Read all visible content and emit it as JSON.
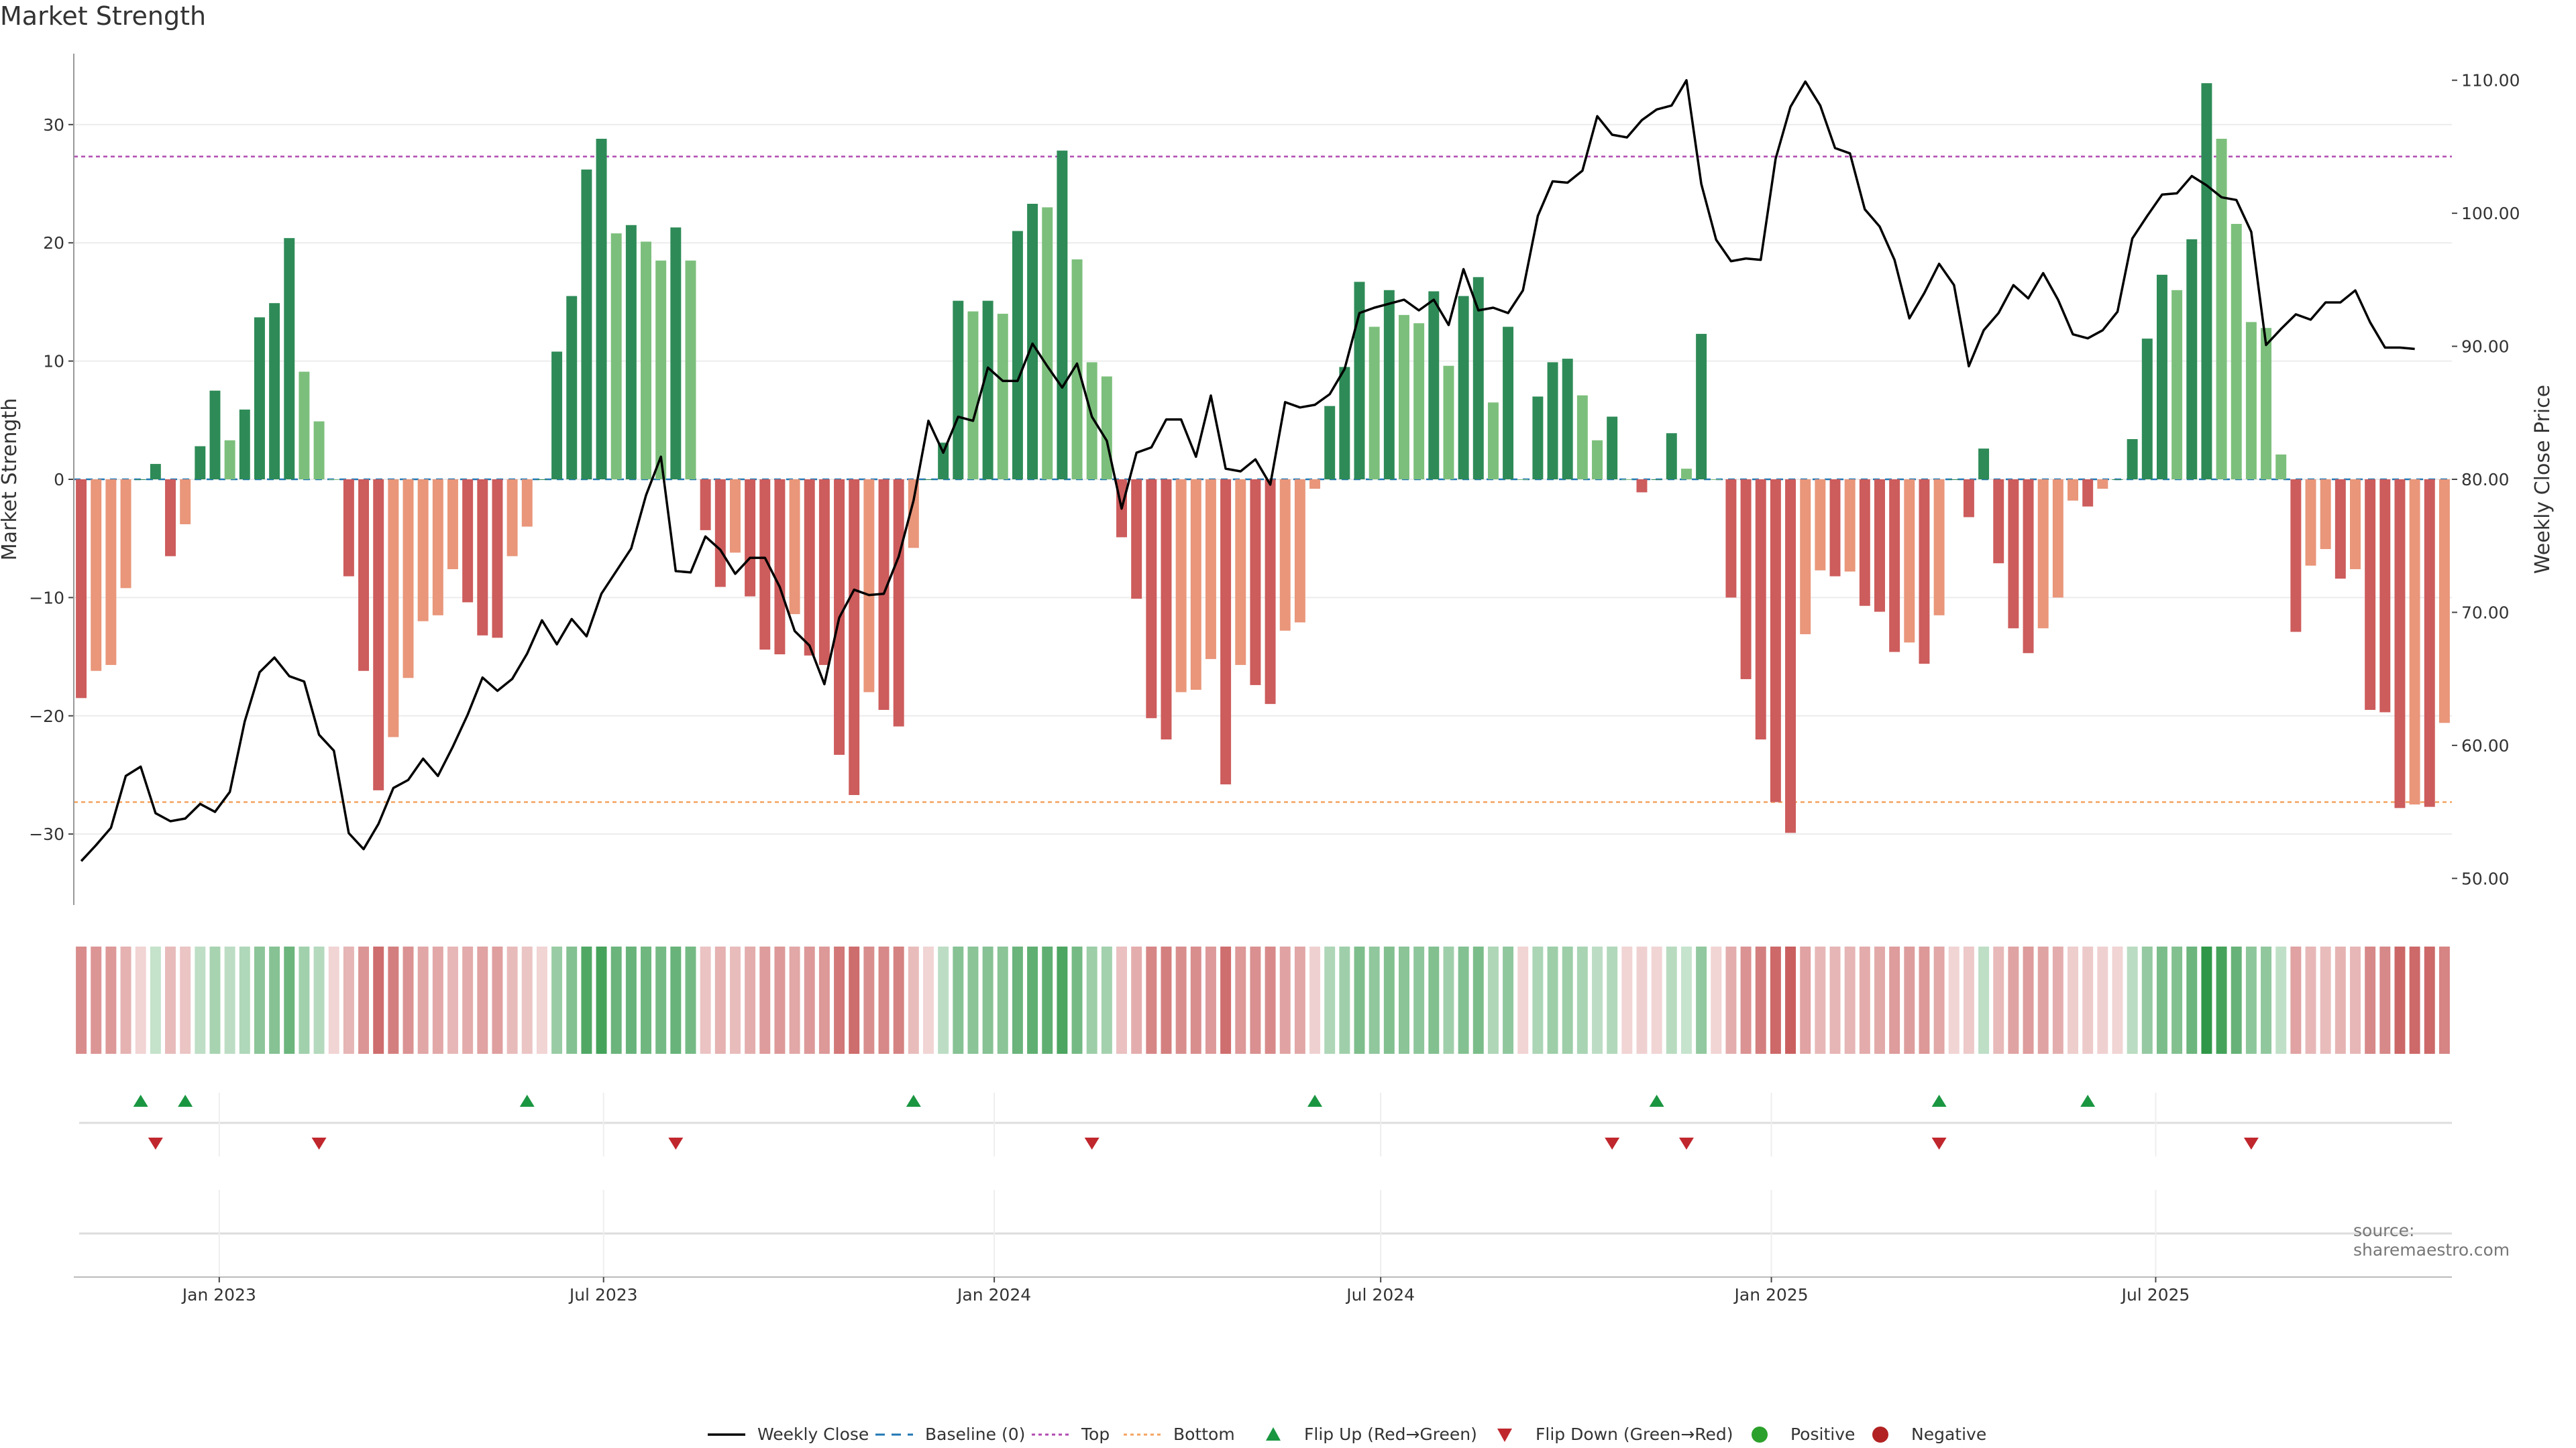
{
  "title": "Market Strength",
  "source": "source: sharemaestro.com",
  "colors": {
    "pos_strong": "#2e8b57",
    "pos_weak": "#7cbf7c",
    "neg_strong": "#cd5c5c",
    "neg_weak": "#e9967a",
    "top": "#b04ab0",
    "bottom": "#f4a460",
    "baseline": "#1f77b4",
    "line": "#000000",
    "flip_up": "#1a9641",
    "flip_down": "#c0272d",
    "positive": "#2ca02c",
    "negative": "#b22222"
  },
  "chart_data": {
    "type": "bar",
    "title": "Market Strength",
    "ylabel": "Market Strength",
    "y2label": "Weekly Close Price",
    "ylim": [
      -36,
      36
    ],
    "y2lim": [
      48,
      112
    ],
    "yticks": [
      -30,
      -20,
      -10,
      0,
      10,
      20,
      30
    ],
    "y2ticks": [
      "50.00",
      "60.00",
      "70.00",
      "80.00",
      "90.00",
      "100.00",
      "110.00"
    ],
    "y2tick_values": [
      50,
      60,
      70,
      80,
      90,
      100,
      110
    ],
    "x_start": "2022-10-28",
    "x_step_days": 7,
    "xticks": [
      {
        "date": "2023-01-01",
        "label": "Jan 2023"
      },
      {
        "date": "2023-07-01",
        "label": "Jul 2023"
      },
      {
        "date": "2024-01-01",
        "label": "Jan 2024"
      },
      {
        "date": "2024-07-01",
        "label": "Jul 2024"
      },
      {
        "date": "2025-01-01",
        "label": "Jan 2025"
      },
      {
        "date": "2025-07-01",
        "label": "Jul 2025"
      }
    ],
    "top_line": 27.3,
    "bottom_line": -27.3,
    "strength": [
      -18.5,
      -16.2,
      -15.7,
      -9.2,
      0,
      1.3,
      -6.5,
      -3.8,
      2.8,
      7.5,
      3.3,
      5.9,
      13.7,
      14.9,
      20.4,
      9.1,
      4.9,
      0,
      -8.2,
      -16.2,
      -26.3,
      -21.8,
      -16.8,
      -12.0,
      -11.5,
      -7.6,
      -10.4,
      -13.2,
      -13.4,
      -6.5,
      -4.0,
      0,
      10.8,
      15.5,
      26.2,
      28.8,
      20.8,
      21.5,
      20.1,
      18.5,
      21.3,
      18.5,
      -4.3,
      -9.1,
      -6.2,
      -9.9,
      -14.4,
      -14.8,
      -11.4,
      -14.9,
      -15.7,
      -23.3,
      -26.7,
      -18.0,
      -19.5,
      -20.9,
      -5.8,
      0,
      3.1,
      15.1,
      14.2,
      15.1,
      14.0,
      21.0,
      23.3,
      23.0,
      27.8,
      18.6,
      9.9,
      8.7,
      -4.9,
      -10.1,
      -20.2,
      -22.0,
      -18.0,
      -17.8,
      -15.2,
      -25.8,
      -15.7,
      -17.4,
      -19.0,
      -12.8,
      -12.1,
      -0.8,
      6.2,
      9.5,
      16.7,
      12.9,
      16.0,
      13.9,
      13.2,
      15.9,
      9.6,
      15.5,
      17.1,
      6.5,
      12.9,
      0,
      7.0,
      9.9,
      10.2,
      7.1,
      3.3,
      5.3,
      0,
      -1.1,
      0,
      3.9,
      0.9,
      12.3,
      0,
      -10.0,
      -16.9,
      -22.0,
      -27.3,
      -29.9,
      -13.1,
      -7.7,
      -8.2,
      -7.8,
      -10.7,
      -11.2,
      -14.6,
      -13.8,
      -15.6,
      -11.5,
      0,
      -3.2,
      2.6,
      -7.1,
      -12.6,
      -14.7,
      -12.6,
      -10.0,
      -1.8,
      -2.3,
      -0.8,
      0,
      3.4,
      11.9,
      17.3,
      16.0,
      20.3,
      33.5,
      28.8,
      21.6,
      13.3,
      12.8,
      2.1,
      -12.9,
      -7.3,
      -5.9,
      -8.4,
      -7.6,
      -19.5,
      -19.7,
      -27.8,
      -27.5,
      -27.7,
      -20.6
    ],
    "close": [
      51.3,
      52.5,
      53.8,
      57.7,
      58.4,
      54.9,
      54.3,
      54.5,
      55.6,
      55.0,
      56.5,
      61.8,
      65.5,
      66.6,
      65.2,
      64.8,
      60.8,
      59.6,
      53.4,
      52.2,
      54.1,
      56.8,
      57.4,
      59.0,
      57.7,
      59.9,
      62.3,
      65.1,
      64.1,
      65.0,
      66.9,
      69.4,
      67.6,
      69.5,
      68.2,
      71.4,
      73.1,
      74.8,
      78.8,
      81.7,
      73.1,
      73.0,
      75.7,
      74.7,
      72.9,
      74.1,
      74.1,
      71.9,
      68.6,
      67.5,
      64.6,
      69.6,
      71.7,
      71.3,
      71.4,
      74.2,
      78.4,
      84.4,
      82.0,
      84.7,
      84.4,
      88.4,
      87.4,
      87.4,
      90.2,
      88.5,
      86.9,
      88.7,
      84.7,
      82.9,
      77.8,
      82.0,
      82.4,
      84.5,
      84.5,
      81.7,
      86.3,
      80.8,
      80.6,
      81.5,
      79.6,
      85.8,
      85.4,
      85.6,
      86.4,
      88.3,
      92.5,
      92.9,
      93.2,
      93.5,
      92.7,
      93.5,
      91.6,
      95.8,
      92.7,
      92.9,
      92.5,
      94.2,
      99.8,
      102.4,
      102.3,
      103.2,
      107.3,
      105.9,
      105.7,
      107.0,
      107.8,
      108.1,
      110.0,
      102.2,
      98.0,
      96.4,
      96.6,
      96.5,
      104.1,
      108.0,
      109.9,
      108.1,
      104.9,
      104.5,
      100.3,
      99.0,
      96.5,
      92.1,
      94.0,
      96.2,
      94.6,
      88.5,
      91.2,
      92.5,
      94.6,
      93.6,
      95.5,
      93.5,
      90.9,
      90.6,
      91.2,
      92.6,
      98.1,
      99.8,
      101.4,
      101.5,
      102.8,
      102.1,
      101.2,
      101.0,
      98.6,
      90.1,
      91.3,
      92.4,
      92.0,
      93.3,
      93.3,
      94.2,
      91.8,
      89.9,
      89.9,
      89.8
    ],
    "flip_up_weeks": [
      4,
      7,
      30,
      56,
      83,
      106,
      125,
      135
    ],
    "flip_down_weeks": [
      5,
      16,
      40,
      68,
      103,
      108,
      125,
      146
    ],
    "legend": [
      "Weekly Close",
      "Baseline (0)",
      "Top",
      "Bottom",
      "Flip Up (Red→Green)",
      "Flip Down (Green→Red)",
      "Positive",
      "Negative"
    ]
  }
}
